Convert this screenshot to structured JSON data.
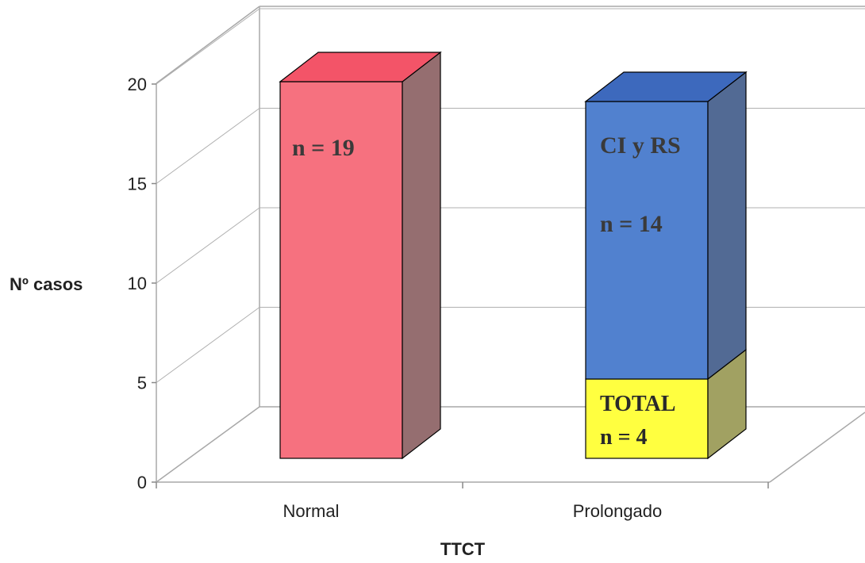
{
  "chart_data": {
    "type": "bar",
    "stacked": true,
    "style": "3d",
    "categories": [
      "Normal",
      "Prolongado"
    ],
    "series": [
      {
        "values": [
          19,
          0
        ],
        "color": "#f6717f",
        "side_color": "#956e70",
        "top_color": "#f35468"
      },
      {
        "values": [
          0,
          4
        ],
        "color": "#ffff40",
        "side_color": "#a1a162",
        "top_color": "#ffff40"
      },
      {
        "values": [
          0,
          14
        ],
        "color": "#5181cf",
        "side_color": "#526a94",
        "top_color": "#3d69bd"
      }
    ],
    "xlabel": "TTCT",
    "ylabel": "Nº casos",
    "ylim": [
      0,
      20
    ],
    "yticks": [
      0,
      5,
      10,
      15,
      20
    ],
    "grid": true,
    "annotations": {
      "normal": "n = 19",
      "prolongado_top_1": "CI y RS",
      "prolongado_top_2": "n = 14",
      "prolongado_bottom_1": "TOTAL",
      "prolongado_bottom_2": "n = 4"
    }
  }
}
